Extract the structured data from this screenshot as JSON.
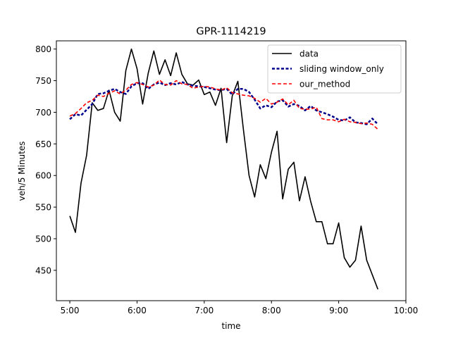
{
  "chart_data": {
    "type": "line",
    "title": "GPR-1114219",
    "xlabel": "time",
    "ylabel": "veh/5 Minutes",
    "x_ticks": [
      "5:00",
      "6:00",
      "7:00",
      "8:00",
      "9:00",
      "10:00"
    ],
    "y_ticks": [
      450,
      500,
      550,
      600,
      650,
      700,
      750,
      800
    ],
    "xlim": [
      "4:48",
      "10:00"
    ],
    "ylim": [
      402,
      813
    ],
    "grid": false,
    "legend_position": "top-right",
    "x": [
      "5:00",
      "5:05",
      "5:10",
      "5:15",
      "5:20",
      "5:25",
      "5:30",
      "5:35",
      "5:40",
      "5:45",
      "5:50",
      "5:55",
      "6:00",
      "6:05",
      "6:10",
      "6:15",
      "6:20",
      "6:25",
      "6:30",
      "6:35",
      "6:40",
      "6:45",
      "6:50",
      "6:55",
      "7:00",
      "7:05",
      "7:10",
      "7:15",
      "7:20",
      "7:25",
      "7:30",
      "7:35",
      "7:40",
      "7:45",
      "7:50",
      "7:55",
      "8:00",
      "8:05",
      "8:10",
      "8:15",
      "8:20",
      "8:25",
      "8:30",
      "8:35",
      "8:40",
      "8:45",
      "8:50",
      "8:55",
      "9:00",
      "9:05",
      "9:10",
      "9:15",
      "9:20",
      "9:25",
      "9:30",
      "9:35"
    ],
    "series": [
      {
        "name": "data",
        "color": "#000000",
        "style": "solid",
        "values": [
          536,
          510,
          588,
          632,
          715,
          703,
          706,
          735,
          700,
          686,
          766,
          800,
          769,
          713,
          762,
          797,
          760,
          783,
          758,
          794,
          760,
          745,
          743,
          751,
          728,
          732,
          711,
          738,
          652,
          726,
          749,
          672,
          600,
          566,
          617,
          595,
          637,
          670,
          563,
          610,
          621,
          560,
          598,
          559,
          527,
          527,
          492,
          492,
          525,
          470,
          455,
          466,
          520,
          466,
          443,
          420
        ]
      },
      {
        "name": "sliding window_only",
        "color": "#00008b",
        "style": "dashed",
        "values": [
          689,
          697,
          695,
          704,
          713,
          729,
          730,
          734,
          737,
          732,
          729,
          741,
          746,
          746,
          737,
          744,
          747,
          743,
          746,
          744,
          748,
          744,
          742,
          741,
          740,
          738,
          736,
          735,
          737,
          728,
          737,
          737,
          732,
          720,
          706,
          711,
          708,
          717,
          719,
          709,
          713,
          710,
          703,
          710,
          703,
          700,
          697,
          693,
          688,
          687,
          692,
          684,
          683,
          681,
          690,
          681
        ]
      },
      {
        "name": "our_method",
        "color": "#ff0000",
        "style": "dashed",
        "values": [
          694,
          698,
          706,
          715,
          719,
          727,
          725,
          730,
          734,
          729,
          735,
          744,
          747,
          744,
          740,
          743,
          751,
          744,
          743,
          750,
          745,
          744,
          738,
          740,
          741,
          740,
          737,
          735,
          739,
          731,
          729,
          727,
          726,
          722,
          716,
          722,
          713,
          716,
          721,
          712,
          719,
          706,
          705,
          705,
          708,
          690,
          688,
          688,
          685,
          689,
          685,
          684,
          682,
          683,
          681,
          673
        ]
      }
    ]
  }
}
